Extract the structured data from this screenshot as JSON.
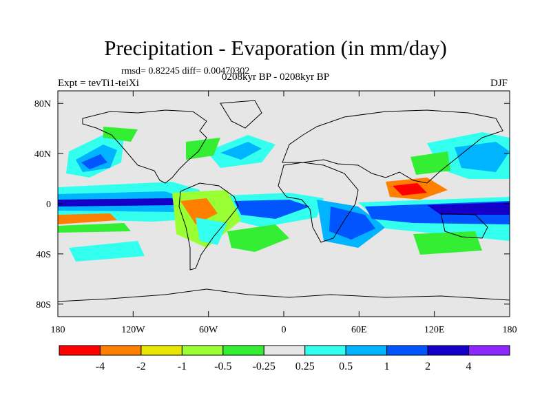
{
  "title": "Precipitation - Evaporation (in mm/day)",
  "stats": "rmsd= 0.82245 diff= 0.00470302",
  "period": "0208kyr BP - 0208kyr BP",
  "expt": "Expt = tevTi1-teiXi",
  "season": "DJF",
  "lat_ticks": [
    {
      "lat": 80,
      "label": "80N"
    },
    {
      "lat": 40,
      "label": "40N"
    },
    {
      "lat": 0,
      "label": "0"
    },
    {
      "lat": -40,
      "label": "40S"
    },
    {
      "lat": -80,
      "label": "80S"
    }
  ],
  "lon_ticks": [
    {
      "lon": -180,
      "label": "180"
    },
    {
      "lon": -120,
      "label": "120W"
    },
    {
      "lon": -60,
      "label": "60W"
    },
    {
      "lon": 0,
      "label": "0"
    },
    {
      "lon": 60,
      "label": "60E"
    },
    {
      "lon": 120,
      "label": "120E"
    },
    {
      "lon": 180,
      "label": "180"
    }
  ],
  "colorbar": {
    "colors": [
      "#ff0000",
      "#ff8000",
      "#e6e600",
      "#99ff33",
      "#33ee33",
      "#e6e6e6",
      "#33ffee",
      "#00b4ff",
      "#0055ff",
      "#1400c8",
      "#8c28ff"
    ],
    "labels": [
      "-4",
      "-2",
      "-1",
      "-0.5",
      "-0.25",
      "0.25",
      "0.5",
      "1",
      "2",
      "4"
    ]
  },
  "background_color": "#e6e6e6"
}
